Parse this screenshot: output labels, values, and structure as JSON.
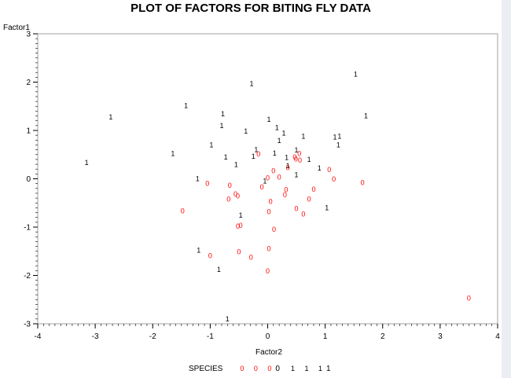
{
  "chart_data": {
    "type": "scatter",
    "title": "PLOT OF FACTORS FOR BITING FLY DATA",
    "xlabel": "Factor2",
    "ylabel": "Factor1",
    "xlim": [
      -4,
      4
    ],
    "ylim": [
      -3,
      3
    ],
    "xticks": [
      "-4",
      "-3",
      "-2",
      "-1",
      "0",
      "1",
      "2",
      "3",
      "4"
    ],
    "yticks": [
      "3",
      "2",
      "1",
      "0",
      "-1",
      "-2",
      "-3"
    ],
    "grid": false,
    "legend": {
      "title": "SPECIES",
      "position": "bottom",
      "entries": [
        {
          "symbols": "0 0 0",
          "label": "0",
          "color": "#ff0000"
        },
        {
          "symbols": "1 1 1",
          "label": "1",
          "color": "#000000"
        }
      ]
    },
    "series": [
      {
        "label": "0",
        "color": "#ff0000",
        "marker": "0",
        "points": [
          [
            -1.48,
            -0.67
          ],
          [
            -1.05,
            -0.1
          ],
          [
            -0.66,
            -0.14
          ],
          [
            -0.68,
            -0.42
          ],
          [
            -0.56,
            -0.32
          ],
          [
            -0.52,
            -0.36
          ],
          [
            -0.47,
            -0.97
          ],
          [
            -0.52,
            -0.98
          ],
          [
            -1.0,
            -1.59
          ],
          [
            -0.5,
            -1.51
          ],
          [
            -0.29,
            -1.63
          ],
          [
            -0.16,
            0.51
          ],
          [
            -0.1,
            -0.17
          ],
          [
            0.02,
            -0.68
          ],
          [
            0.0,
            0.02
          ],
          [
            0.05,
            -0.47
          ],
          [
            0.1,
            0.16
          ],
          [
            0.11,
            -1.05
          ],
          [
            0.02,
            -1.45
          ],
          [
            0.0,
            -1.91
          ],
          [
            0.2,
            0.03
          ],
          [
            0.3,
            -0.33
          ],
          [
            0.32,
            -0.23
          ],
          [
            0.35,
            0.23
          ],
          [
            0.47,
            0.45
          ],
          [
            0.49,
            0.41
          ],
          [
            0.5,
            -0.62
          ],
          [
            0.55,
            0.52
          ],
          [
            0.56,
            0.38
          ],
          [
            0.62,
            -0.73
          ],
          [
            0.72,
            -0.42
          ],
          [
            0.8,
            -0.22
          ],
          [
            1.07,
            0.19
          ],
          [
            1.15,
            -0.01
          ],
          [
            1.65,
            -0.08
          ],
          [
            3.5,
            -2.47
          ]
        ]
      },
      {
        "label": "1",
        "color": "#000000",
        "marker": "1",
        "points": [
          [
            -3.15,
            0.33
          ],
          [
            -2.73,
            1.28
          ],
          [
            -1.42,
            1.51
          ],
          [
            -1.65,
            0.52
          ],
          [
            -1.22,
            0.0
          ],
          [
            -0.98,
            0.7
          ],
          [
            -0.78,
            1.34
          ],
          [
            -0.8,
            1.1
          ],
          [
            -0.73,
            0.45
          ],
          [
            -0.55,
            0.29
          ],
          [
            -0.38,
            0.98
          ],
          [
            -0.28,
            1.97
          ],
          [
            -0.25,
            0.46
          ],
          [
            -0.2,
            0.6
          ],
          [
            0.02,
            1.23
          ],
          [
            0.12,
            0.53
          ],
          [
            0.16,
            1.06
          ],
          [
            0.2,
            0.79
          ],
          [
            0.28,
            0.94
          ],
          [
            0.33,
            0.44
          ],
          [
            0.35,
            0.27
          ],
          [
            0.5,
            0.59
          ],
          [
            0.62,
            0.88
          ],
          [
            0.72,
            0.4
          ],
          [
            0.9,
            0.22
          ],
          [
            0.5,
            0.08
          ],
          [
            -0.05,
            -0.05
          ],
          [
            -0.47,
            -0.76
          ],
          [
            -1.2,
            -1.48
          ],
          [
            -0.85,
            -1.88
          ],
          [
            1.03,
            -0.6
          ],
          [
            1.17,
            0.86
          ],
          [
            1.25,
            0.88
          ],
          [
            1.23,
            0.7
          ],
          [
            1.53,
            2.16
          ],
          [
            1.71,
            1.3
          ],
          [
            -0.7,
            -2.9
          ]
        ]
      }
    ]
  }
}
